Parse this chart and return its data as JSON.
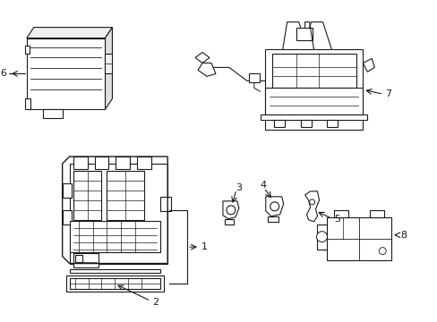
{
  "bg_color": "#ffffff",
  "line_color": "#1a1a1a",
  "line_width": 0.8,
  "fig_w": 4.89,
  "fig_h": 3.6,
  "dpi": 100
}
